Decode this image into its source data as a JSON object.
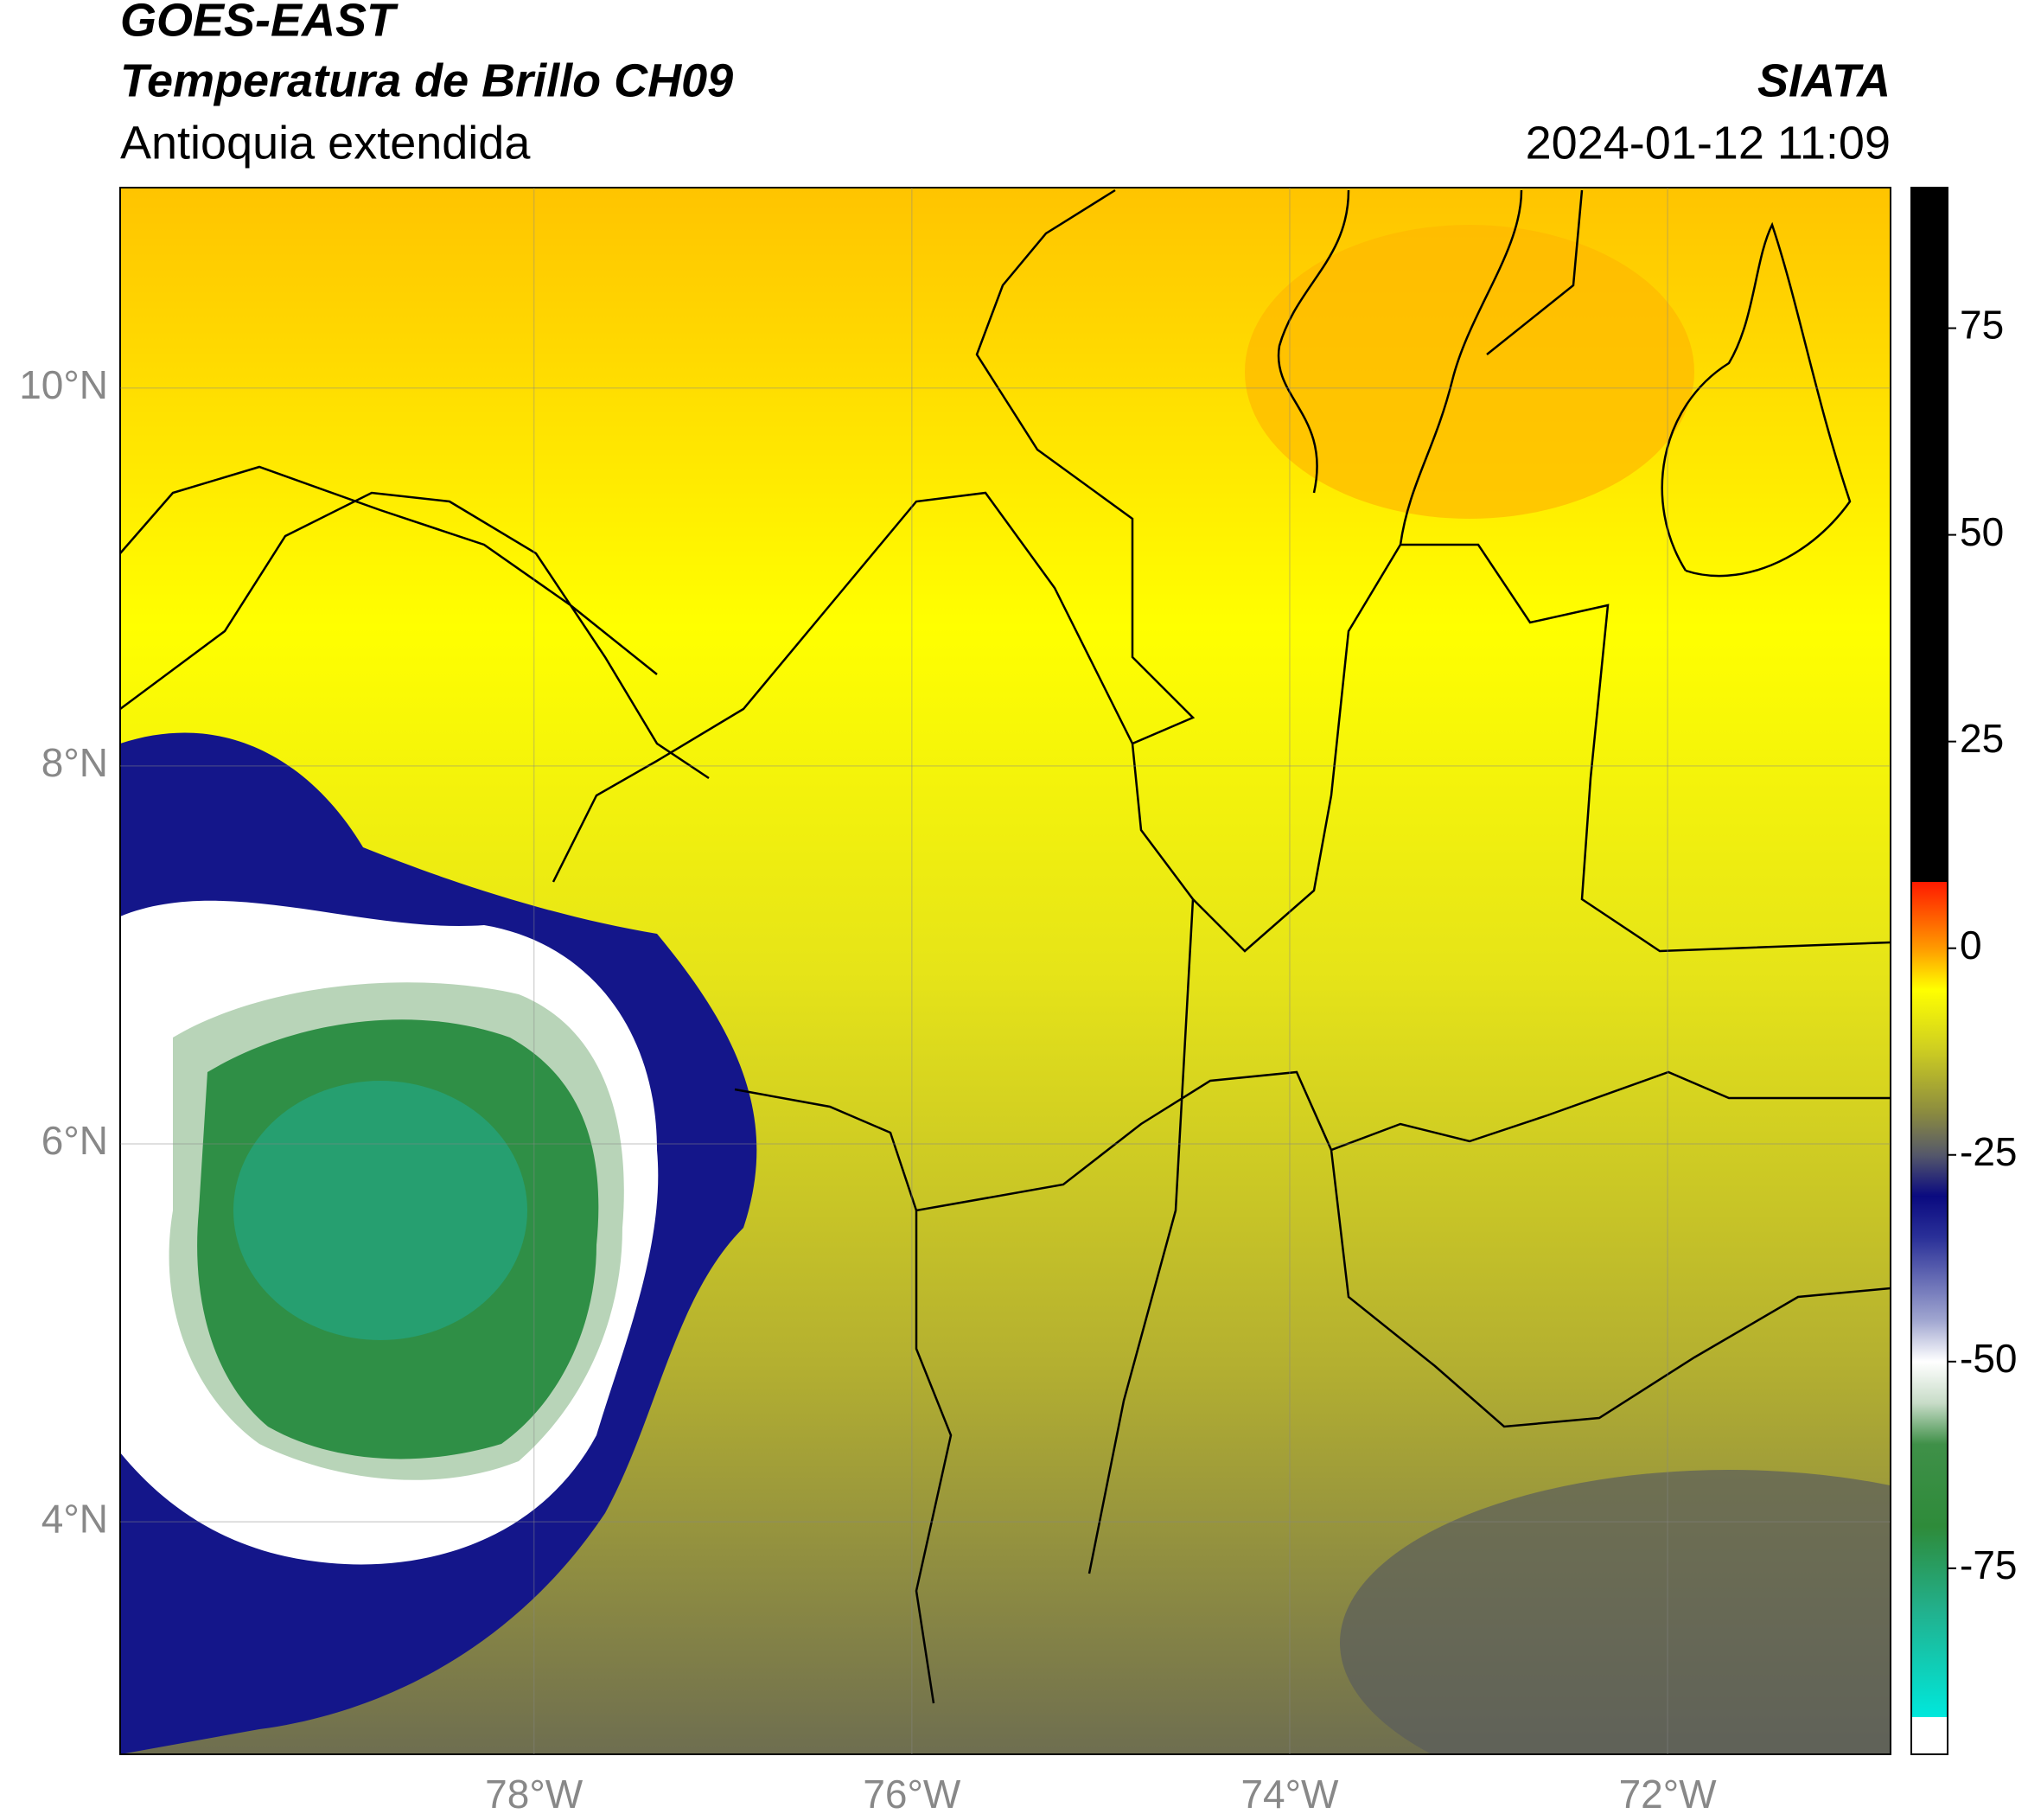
{
  "header": {
    "title": "GOES-EAST",
    "subtitle": "Temperatura de Brillo CH09",
    "region": "Antioquia extendida",
    "source": "SIATA",
    "datetime": "2024-01-12 11:09"
  },
  "map": {
    "xlim": [
      -80.19,
      -70.82
    ],
    "ylim": [
      2.77,
      11.06
    ],
    "xticks": [
      {
        "value": -78,
        "label": "78°W"
      },
      {
        "value": -76,
        "label": "76°W"
      },
      {
        "value": -74,
        "label": "74°W"
      },
      {
        "value": -72,
        "label": "72°W"
      }
    ],
    "yticks": [
      {
        "value": 10,
        "label": "10°N"
      },
      {
        "value": 8,
        "label": "8°N"
      },
      {
        "value": 6,
        "label": "6°N"
      },
      {
        "value": 4,
        "label": "4°N"
      }
    ],
    "grid": true
  },
  "colorbar": {
    "clim": [
      -97.5,
      92
    ],
    "ticks": [
      75,
      50,
      25,
      0,
      -25,
      -50,
      -75
    ],
    "colormap": [
      {
        "value": -97.5,
        "color": "#ffffff"
      },
      {
        "value": -93,
        "color": "#ffffff"
      },
      {
        "value": -93,
        "color": "#00e8dc"
      },
      {
        "value": -80,
        "color": "#22b08c"
      },
      {
        "value": -70,
        "color": "#2e8b3a"
      },
      {
        "value": -60,
        "color": "#3f9048"
      },
      {
        "value": -55,
        "color": "#c8dcc8"
      },
      {
        "value": -50,
        "color": "#ffffff"
      },
      {
        "value": -45,
        "color": "#a0a6d0"
      },
      {
        "value": -35,
        "color": "#2a3098"
      },
      {
        "value": -30,
        "color": "#0a0a80"
      },
      {
        "value": -25,
        "color": "#55586a"
      },
      {
        "value": -20,
        "color": "#8a8a40"
      },
      {
        "value": -12,
        "color": "#d0d020"
      },
      {
        "value": -5,
        "color": "#ffff00"
      },
      {
        "value": 0,
        "color": "#ff9a00"
      },
      {
        "value": 8,
        "color": "#ff1a00"
      },
      {
        "value": 8,
        "color": "#000000"
      },
      {
        "value": 92,
        "color": "#000000"
      }
    ]
  }
}
